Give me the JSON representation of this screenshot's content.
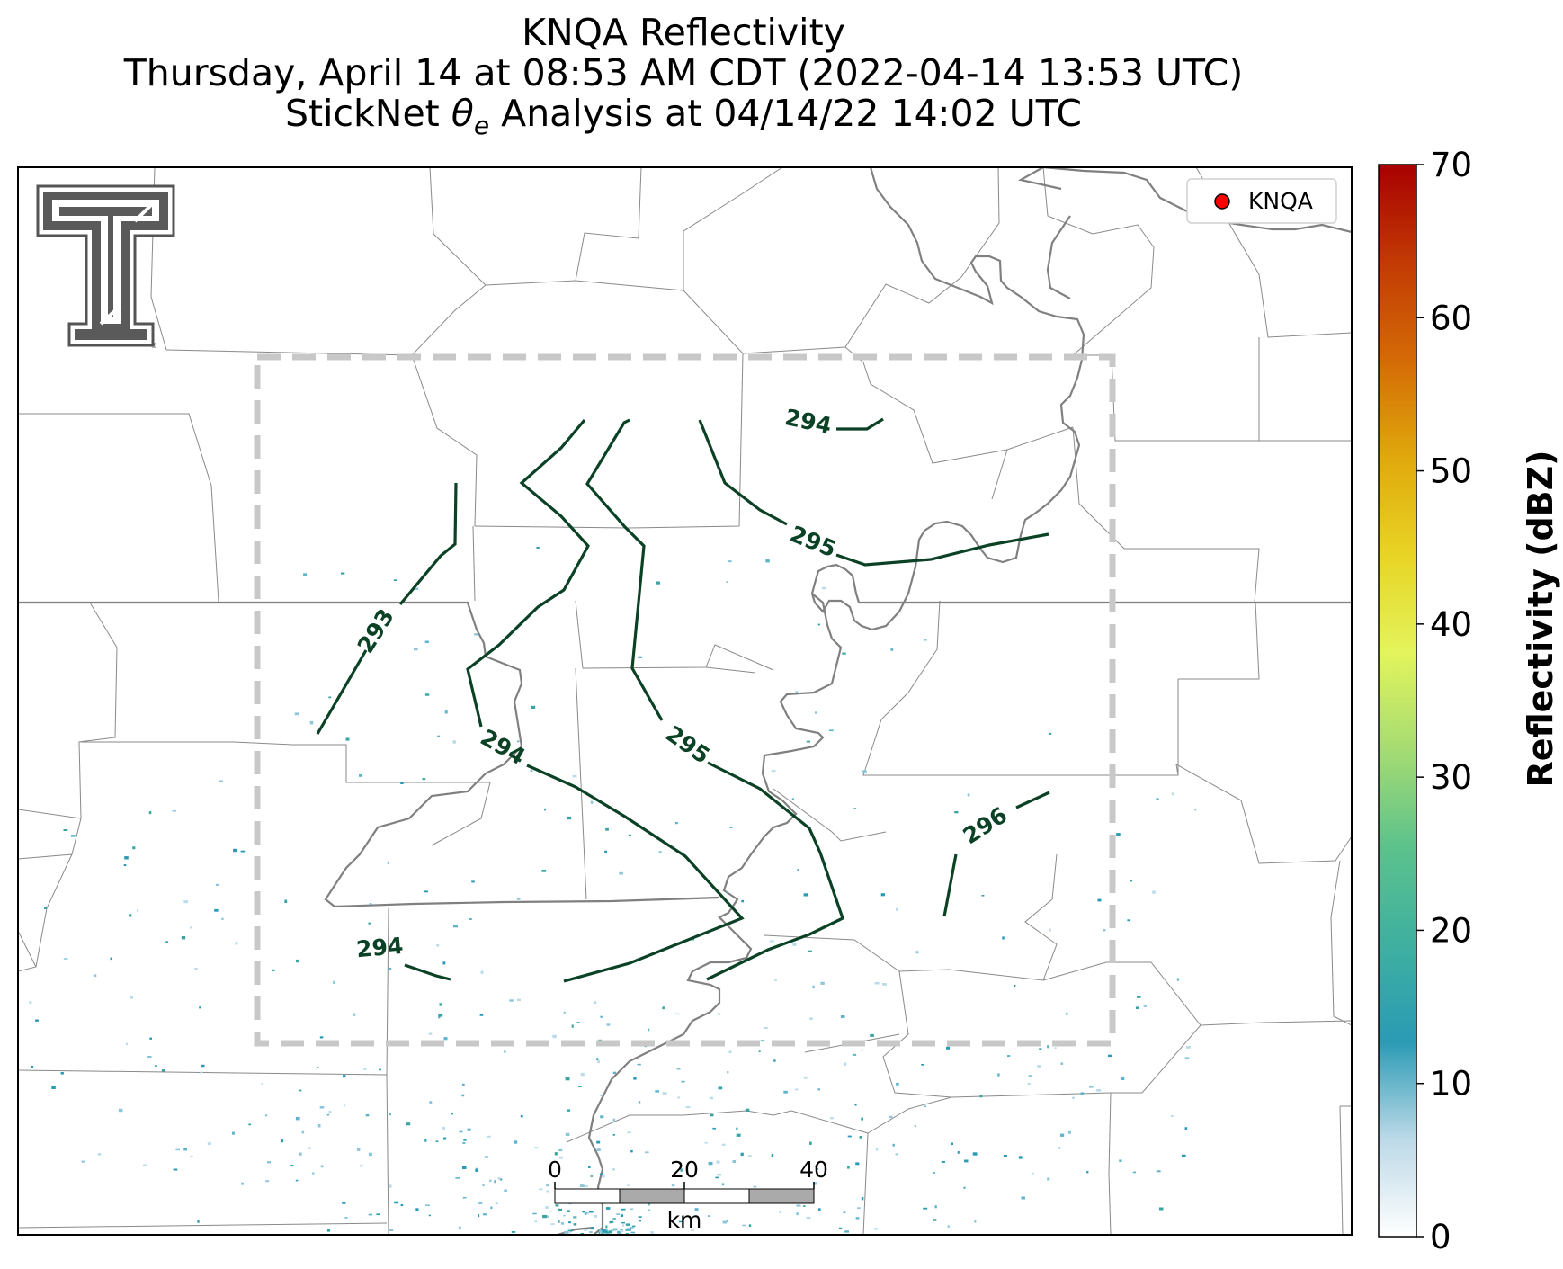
{
  "title": {
    "line1": "KNQA Reflectivity",
    "line2": "Thursday, April 14 at 08:53 AM CDT (2022-04-14 13:53 UTC)",
    "line3_prefix": "StickNet ",
    "line3_symbol": "θ",
    "line3_subscript": "e",
    "line3_suffix": " Analysis at 04/14/22 14:02 UTC"
  },
  "legend": {
    "label": "KNQA",
    "marker_color": "#ff0000"
  },
  "logo": {
    "name": "texas-tech-double-t-logo",
    "mark": "®"
  },
  "colorbar": {
    "label": "Reflectivity (dBZ)",
    "min": 0,
    "max": 70,
    "ticks": [
      "0",
      "10",
      "20",
      "30",
      "40",
      "50",
      "60",
      "70"
    ],
    "colors": [
      "#ffffff",
      "#bcd9e8",
      "#2a9bb4",
      "#3fb0a0",
      "#5cc28c",
      "#a6dc72",
      "#e3f45c",
      "#e8d424",
      "#e0a80c",
      "#d46a06",
      "#c23a04",
      "#a80000"
    ]
  },
  "scalebar": {
    "ticks": [
      "0",
      "20",
      "40"
    ],
    "unit": "km"
  },
  "contour_color": "#0b4226",
  "contour_labels": [
    "293",
    "294",
    "294",
    "294",
    "295",
    "295",
    "296"
  ]
}
